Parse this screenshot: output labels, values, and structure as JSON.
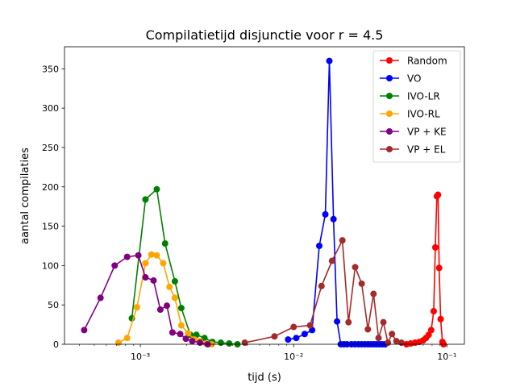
{
  "chart_data": {
    "type": "line",
    "title": "Compilatietijd disjunctie voor r = 4.5",
    "xlabel": "tijd (s)",
    "ylabel": "aantal compilaties",
    "x_scale": "log",
    "xlim": [
      0.00032,
      0.13
    ],
    "ylim": [
      0,
      378
    ],
    "x_ticks": [
      {
        "value": 0.001,
        "label": "10⁻³"
      },
      {
        "value": 0.01,
        "label": "10⁻²"
      },
      {
        "value": 0.1,
        "label": "10⁻¹"
      }
    ],
    "y_ticks": [
      0,
      50,
      100,
      150,
      200,
      250,
      300,
      350
    ],
    "grid": false,
    "legend_position": "top-right",
    "series": [
      {
        "name": "Random",
        "color": "#ff0000",
        "x": [
          0.0545,
          0.058,
          0.062,
          0.066,
          0.07,
          0.073,
          0.076,
          0.079,
          0.082,
          0.084,
          0.086,
          0.0875,
          0.089,
          0.091,
          0.0935,
          0.095
        ],
        "y": [
          0,
          1,
          2,
          3,
          5,
          8,
          12,
          18,
          42,
          123,
          188,
          190,
          97,
          32,
          3,
          0
        ]
      },
      {
        "name": "VO",
        "color": "#0000ff",
        "x": [
          0.0092,
          0.0104,
          0.0118,
          0.0132,
          0.0147,
          0.0161,
          0.0171,
          0.0182,
          0.0192,
          0.0203,
          0.0213,
          0.0223,
          0.0238,
          0.0251,
          0.0265,
          0.0278,
          0.0292,
          0.0306,
          0.032,
          0.0334,
          0.0348,
          0.0362,
          0.0378,
          0.0395
        ],
        "y": [
          6,
          8,
          13,
          18,
          125,
          165,
          360,
          159,
          29,
          0,
          0,
          0,
          0,
          0,
          0,
          0,
          0,
          0,
          0,
          0,
          0,
          0,
          0,
          0
        ]
      },
      {
        "name": "IVO-LR",
        "color": "#008000",
        "x": [
          0.00088,
          0.00108,
          0.00128,
          0.00145,
          0.00168,
          0.00185,
          0.00212,
          0.00232,
          0.00262,
          0.00295,
          0.00335,
          0.0038,
          0.0043
        ],
        "y": [
          33,
          184,
          197,
          128,
          80,
          46,
          12,
          12,
          8,
          3,
          2,
          1,
          0
        ]
      },
      {
        "name": "IVO-RL",
        "color": "#ffa500",
        "x": [
          0.00072,
          0.00082,
          0.00095,
          0.00108,
          0.00118,
          0.00128,
          0.00141,
          0.00155,
          0.00168,
          0.00185,
          0.00205,
          0.00225,
          0.00245,
          0.00268,
          0.00292
        ],
        "y": [
          2,
          8,
          47,
          103,
          114,
          113,
          103,
          73,
          59,
          24,
          14,
          6,
          4,
          1,
          0
        ]
      },
      {
        "name": "VP + KE",
        "color": "#800080",
        "x": [
          0.00043,
          0.00055,
          0.00068,
          0.00082,
          0.00097,
          0.00108,
          0.00122,
          0.00135,
          0.00149,
          0.00162,
          0.00182,
          0.00198,
          0.00218,
          0.00245,
          0.00275
        ],
        "y": [
          18,
          59,
          100,
          111,
          113,
          85,
          81,
          44,
          49,
          15,
          13,
          7,
          4,
          2,
          0
        ]
      },
      {
        "name": "VP + EL",
        "color": "#a52a2a",
        "x": [
          0.0048,
          0.0075,
          0.01,
          0.0128,
          0.0152,
          0.0178,
          0.0208,
          0.0228,
          0.0252,
          0.0278,
          0.0305,
          0.0332,
          0.0358,
          0.0385,
          0.0412,
          0.0438,
          0.0468,
          0.0505
        ],
        "y": [
          2,
          10,
          22,
          24,
          74,
          106,
          132,
          28,
          98,
          77,
          19,
          64,
          8,
          28,
          2,
          13,
          4,
          2
        ]
      }
    ]
  }
}
